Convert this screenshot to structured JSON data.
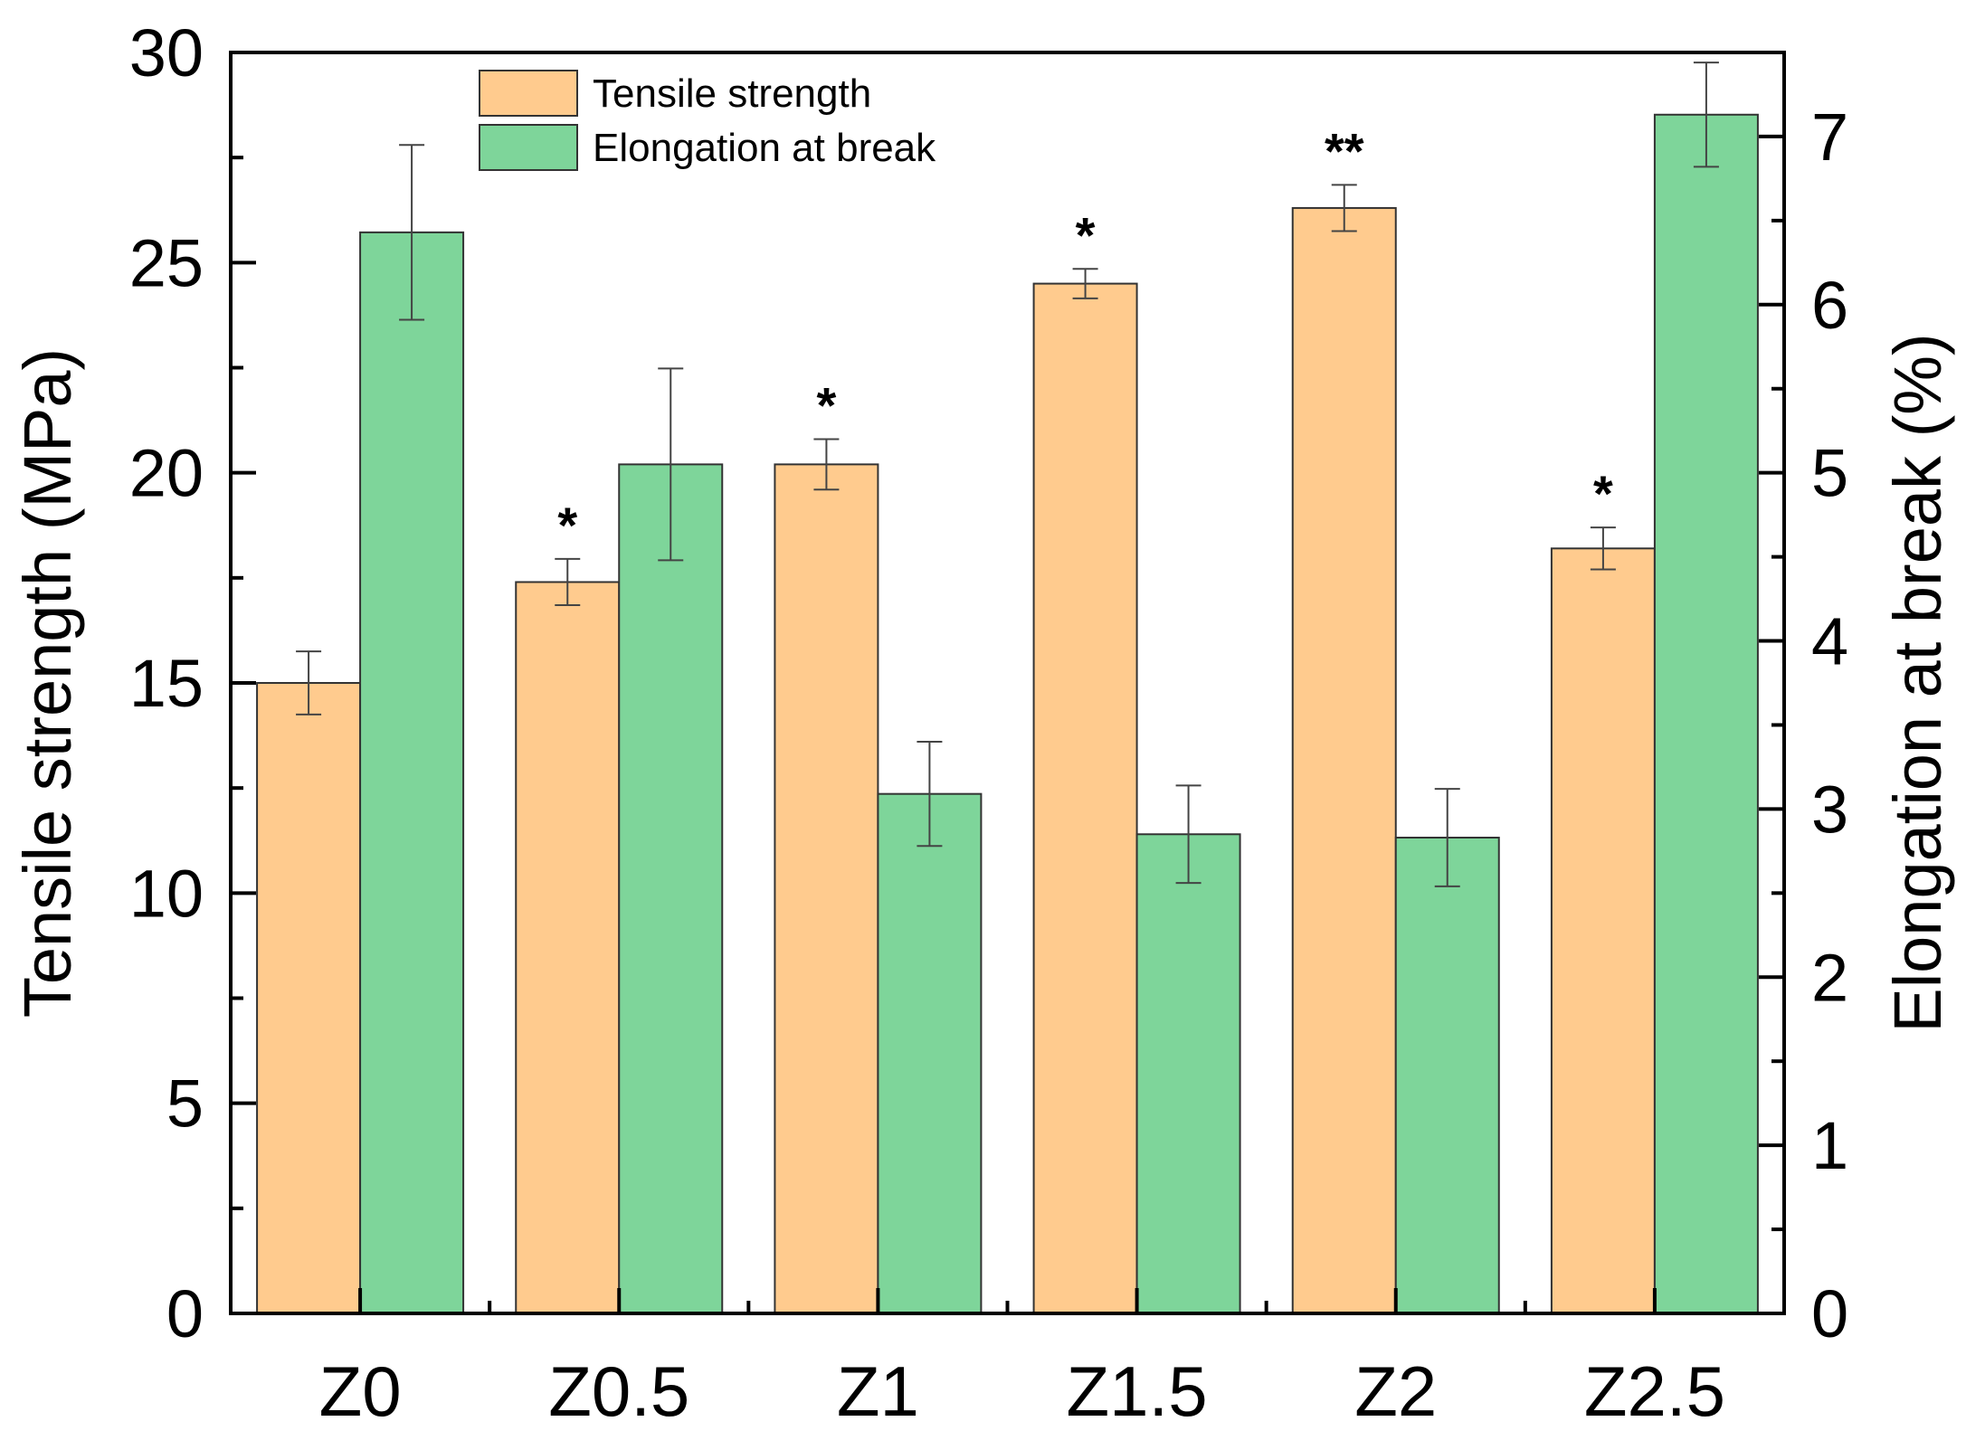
{
  "chart_data": {
    "type": "bar",
    "categories": [
      "Z0",
      "Z0.5",
      "Z1",
      "Z1.5",
      "Z2",
      "Z2.5"
    ],
    "series": [
      {
        "name": "Tensile strength",
        "axis": "left",
        "values": [
          15.0,
          17.4,
          20.2,
          24.5,
          26.3,
          18.2
        ],
        "errors": [
          0.75,
          0.55,
          0.6,
          0.35,
          0.55,
          0.5
        ],
        "color": "#FFCB8E",
        "significance": [
          "",
          "*",
          "*",
          "*",
          "**",
          "*"
        ]
      },
      {
        "name": "Elongation at break",
        "axis": "right",
        "values": [
          6.43,
          5.05,
          3.09,
          2.85,
          2.83,
          7.13
        ],
        "errors": [
          0.52,
          0.57,
          0.31,
          0.29,
          0.29,
          0.31
        ],
        "color": "#7ED59A"
      }
    ],
    "ylabel": "Tensile strength (MPa)",
    "ylabel_right": "Elongation at break (%)",
    "ylim": [
      0,
      30
    ],
    "ylim_right": [
      0,
      7.5
    ],
    "yticks": [
      0,
      5,
      10,
      15,
      20,
      25,
      30
    ],
    "yticks_right": [
      0,
      1,
      2,
      3,
      4,
      5,
      6,
      7
    ],
    "legend_position": "top-center"
  }
}
